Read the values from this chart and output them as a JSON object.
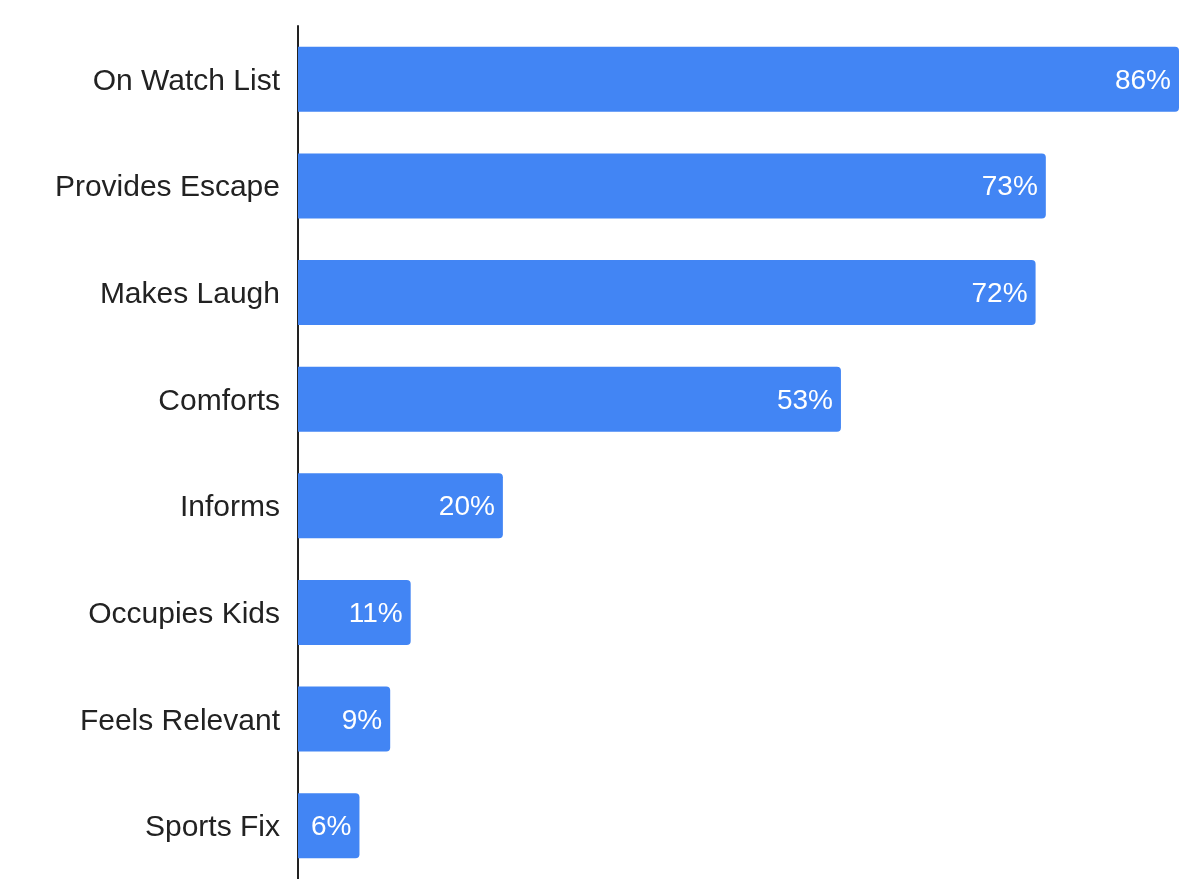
{
  "chart_data": {
    "type": "bar",
    "orientation": "horizontal",
    "categories": [
      "On Watch List",
      "Provides Escape",
      "Makes Laugh",
      "Comforts",
      "Informs",
      "Occupies Kids",
      "Feels Relevant",
      "Sports Fix"
    ],
    "values": [
      86,
      73,
      72,
      53,
      20,
      11,
      9,
      6
    ],
    "value_labels": [
      "86%",
      "73%",
      "72%",
      "53%",
      "20%",
      "11%",
      "9%",
      "6%"
    ],
    "color": "#4285f4"
  }
}
